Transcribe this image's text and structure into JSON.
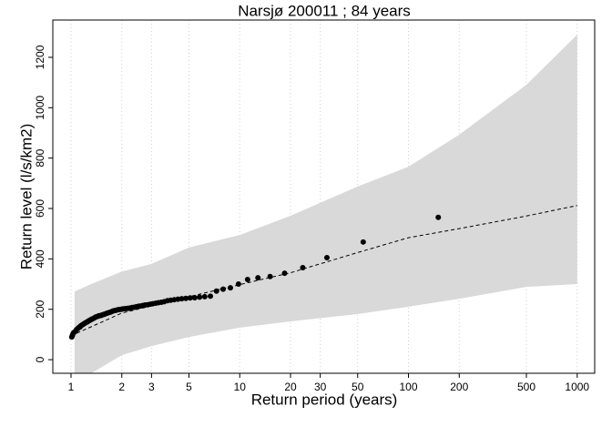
{
  "chart_data": {
    "type": "scatter",
    "title": "Narsjø 200011 ; 84 years",
    "x_label": "Return period (years)",
    "y_label": "Return level (l/s/km2)",
    "log_x": true,
    "grid": true,
    "xlim": [
      0.78,
      1270
    ],
    "ylim": [
      -54,
      1348
    ],
    "xticks": [
      1,
      2,
      3,
      5,
      10,
      20,
      30,
      50,
      100,
      200,
      500,
      1000
    ],
    "yticks": [
      0,
      200,
      400,
      600,
      800,
      1000,
      1200
    ],
    "band": {
      "color": "#d9d9d9",
      "x": [
        1.05,
        1.32,
        2,
        3,
        5,
        10,
        20,
        50,
        100,
        200,
        500,
        1000
      ],
      "upper": [
        271,
        300,
        350,
        380,
        445,
        495,
        571,
        687,
        766,
        893,
        1091,
        1290
      ],
      "lower": [
        -80,
        -54,
        18,
        54,
        90,
        127,
        152,
        181,
        210,
        242,
        289,
        300
      ]
    },
    "fit": {
      "color": "#000000",
      "x": [
        1,
        2,
        5,
        10,
        20,
        50,
        100,
        200,
        500,
        1000
      ],
      "values": [
        95,
        185,
        250,
        298,
        345,
        425,
        484,
        520,
        570,
        612
      ]
    },
    "series": [
      {
        "color": "#000000",
        "x": [
          150.2,
          53.92,
          32.86,
          23.63,
          18.45,
          15.13,
          12.82,
          11.13,
          9.83,
          8.8,
          7.97,
          7.28,
          6.7,
          6.2,
          5.78,
          5.41,
          5.08,
          4.79,
          4.53,
          4.3,
          4.09,
          3.9,
          3.73,
          3.57,
          3.43,
          3.29,
          3.17,
          3.05,
          2.95,
          2.85,
          2.75,
          2.67,
          2.58,
          2.51,
          2.43,
          2.37,
          2.3,
          2.24,
          2.18,
          2.13,
          2.07,
          2.02,
          1.98,
          1.93,
          1.89,
          1.85,
          1.81,
          1.77,
          1.73,
          1.7,
          1.66,
          1.63,
          1.6,
          1.57,
          1.54,
          1.51,
          1.49,
          1.46,
          1.44,
          1.41,
          1.39,
          1.37,
          1.34,
          1.32,
          1.3,
          1.28,
          1.26,
          1.25,
          1.23,
          1.21,
          1.19,
          1.18,
          1.16,
          1.14,
          1.13,
          1.11,
          1.1,
          1.08,
          1.07,
          1.06,
          1.04,
          1.03,
          1.02,
          1.01
        ],
        "values": [
          565,
          467,
          405,
          365,
          343,
          330,
          325,
          318,
          300,
          285,
          280,
          272,
          252,
          250,
          248,
          246,
          245,
          243,
          242,
          240,
          238,
          236,
          234,
          230,
          228,
          226,
          224,
          222,
          220,
          218,
          217,
          215,
          213,
          212,
          210,
          208,
          207,
          205,
          204,
          203,
          202,
          201,
          200,
          199,
          198,
          196,
          195,
          193,
          190,
          188,
          186,
          184,
          182,
          180,
          178,
          176,
          175,
          174,
          172,
          170,
          168,
          165,
          162,
          160,
          157,
          155,
          152,
          150,
          148,
          145,
          142,
          140,
          137,
          134,
          130,
          127,
          124,
          120,
          116,
          112,
          108,
          104,
          97,
          90
        ]
      }
    ]
  }
}
